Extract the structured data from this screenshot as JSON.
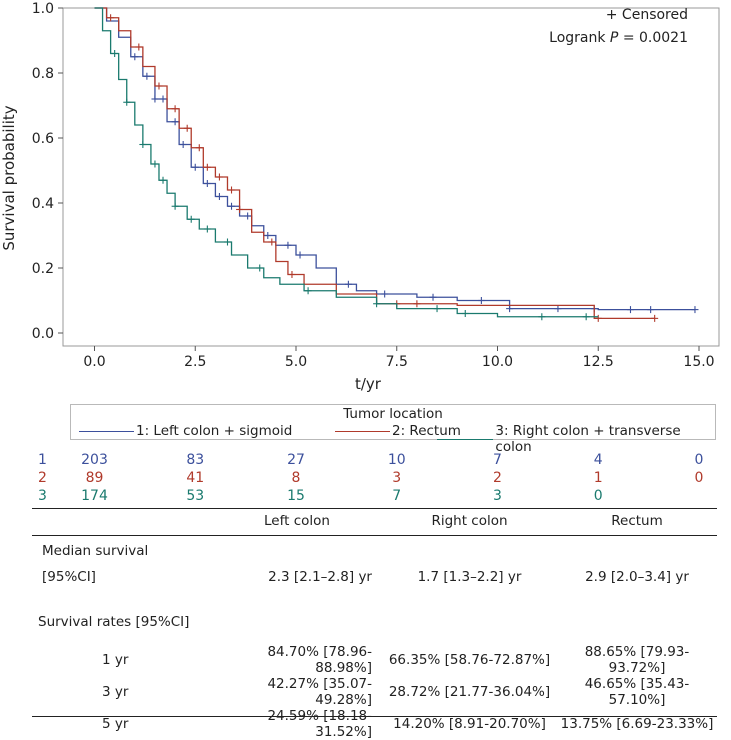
{
  "chart_data": {
    "type": "line",
    "subtype": "kaplan-meier",
    "xlabel": "t/yr",
    "ylabel": "Survival probability",
    "xlim": [
      -0.5,
      15.5
    ],
    "ylim": [
      0,
      1.0
    ],
    "x_ticks": [
      "0.0",
      "2.5",
      "5.0",
      "7.5",
      "10.0",
      "12.5",
      "15.0"
    ],
    "y_ticks": [
      "0.0",
      "0.2",
      "0.4",
      "0.6",
      "0.8",
      "1.0"
    ],
    "annotation_censored": "+ Censored",
    "annotation_logrank_prefix": "Logrank ",
    "annotation_logrank_p": "P",
    "annotation_logrank_suffix": " = 0.0021",
    "series": [
      {
        "name": "1: Left colon + sigmoid",
        "color": "#3c509c",
        "x": [
          0,
          0.3,
          0.6,
          0.9,
          1.2,
          1.5,
          1.8,
          2.1,
          2.4,
          2.7,
          3.0,
          3.3,
          3.6,
          3.9,
          4.2,
          4.5,
          5.0,
          5.5,
          6.0,
          6.5,
          7.0,
          8.0,
          9.0,
          10.3,
          11.0,
          12.5,
          14.9
        ],
        "y": [
          1.0,
          0.96,
          0.91,
          0.85,
          0.79,
          0.72,
          0.65,
          0.58,
          0.51,
          0.46,
          0.42,
          0.39,
          0.36,
          0.33,
          0.3,
          0.27,
          0.24,
          0.2,
          0.15,
          0.13,
          0.12,
          0.11,
          0.1,
          0.075,
          0.075,
          0.072,
          0.072
        ],
        "censored": [
          1.0,
          1.3,
          1.5,
          1.7,
          2.0,
          2.2,
          2.5,
          2.8,
          3.1,
          3.4,
          3.8,
          4.3,
          4.8,
          5.1,
          6.3,
          7.2,
          8.4,
          9.6,
          10.3,
          11.5,
          12.4,
          13.3,
          13.8,
          14.9
        ]
      },
      {
        "name": "2: Rectum",
        "color": "#b03a2b",
        "x": [
          0,
          0.3,
          0.6,
          0.9,
          1.2,
          1.5,
          1.8,
          2.1,
          2.4,
          2.7,
          3.0,
          3.3,
          3.6,
          3.9,
          4.2,
          4.5,
          4.8,
          5.2,
          6.0,
          7.0,
          7.5,
          9.0,
          10.0,
          12.0,
          12.4,
          13.9
        ],
        "y": [
          1.0,
          0.97,
          0.93,
          0.88,
          0.82,
          0.76,
          0.69,
          0.63,
          0.57,
          0.51,
          0.48,
          0.44,
          0.38,
          0.31,
          0.28,
          0.22,
          0.18,
          0.15,
          0.12,
          0.09,
          0.09,
          0.085,
          0.085,
          0.085,
          0.045,
          0.045
        ],
        "censored": [
          0.4,
          1.1,
          1.6,
          2.0,
          2.3,
          2.6,
          2.8,
          3.1,
          3.4,
          3.6,
          4.4,
          4.9,
          7.5,
          8.0,
          12.5,
          13.9
        ]
      },
      {
        "name": "3: Right colon + transverse colon",
        "color": "#1a7a6e",
        "x": [
          0,
          0.2,
          0.4,
          0.6,
          0.8,
          1.0,
          1.2,
          1.4,
          1.6,
          1.8,
          2.0,
          2.3,
          2.6,
          3.0,
          3.4,
          3.8,
          4.2,
          4.6,
          5.2,
          6.0,
          7.0,
          7.5,
          9.0,
          10.0,
          12.0,
          12.5
        ],
        "y": [
          1.0,
          0.93,
          0.86,
          0.78,
          0.71,
          0.64,
          0.58,
          0.52,
          0.47,
          0.43,
          0.39,
          0.35,
          0.32,
          0.28,
          0.24,
          0.2,
          0.17,
          0.15,
          0.13,
          0.11,
          0.09,
          0.075,
          0.06,
          0.05,
          0.05,
          0.05
        ],
        "censored": [
          0.5,
          0.8,
          1.2,
          1.5,
          1.7,
          2.0,
          2.4,
          2.8,
          3.3,
          4.1,
          5.3,
          7.0,
          8.5,
          9.2,
          11.1,
          12.2
        ]
      }
    ]
  },
  "legend": {
    "title": "Tumor location",
    "items": [
      {
        "label": "1: Left colon + sigmoid",
        "color": "#3c509c"
      },
      {
        "label": "2: Rectum",
        "color": "#b03a2b"
      },
      {
        "label": "3: Right colon + transverse colon",
        "color": "#1a7a6e"
      }
    ]
  },
  "risk_table": [
    {
      "group": "1",
      "color": "#3c509c",
      "counts": [
        "203",
        "83",
        "27",
        "10",
        "7",
        "4",
        "0"
      ]
    },
    {
      "group": "2",
      "color": "#b03a2b",
      "counts": [
        "89",
        "41",
        "8",
        "3",
        "2",
        "1",
        "0"
      ]
    },
    {
      "group": "3",
      "color": "#1a7a6e",
      "counts": [
        "174",
        "53",
        "15",
        "7",
        "3",
        "0",
        ""
      ]
    }
  ],
  "stats_table": {
    "headers": [
      "",
      "Left colon",
      "Right colon",
      "Rectum"
    ],
    "median_label": "Median survival",
    "median_ci_label": "[95%CI]",
    "median_values": [
      "2.3 [2.1–2.8] yr",
      "1.7 [1.3–2.2] yr",
      "2.9 [2.0–3.4] yr"
    ],
    "rates_label": "Survival rates [95%CI]",
    "rates": [
      {
        "label": "1 yr",
        "values": [
          "84.70% [78.96-88.98%]",
          "66.35% [58.76-72.87%]",
          "88.65% [79.93-93.72%]"
        ]
      },
      {
        "label": "3 yr",
        "values": [
          "42.27% [35.07-49.28%]",
          "28.72% [21.77-36.04%]",
          "46.65% [35.43-57.10%]"
        ]
      },
      {
        "label": "5 yr",
        "values": [
          "24.59% [18.18-31.52%]",
          "14.20% [8.91-20.70%]",
          "13.75% [6.69-23.33%]"
        ]
      }
    ]
  }
}
